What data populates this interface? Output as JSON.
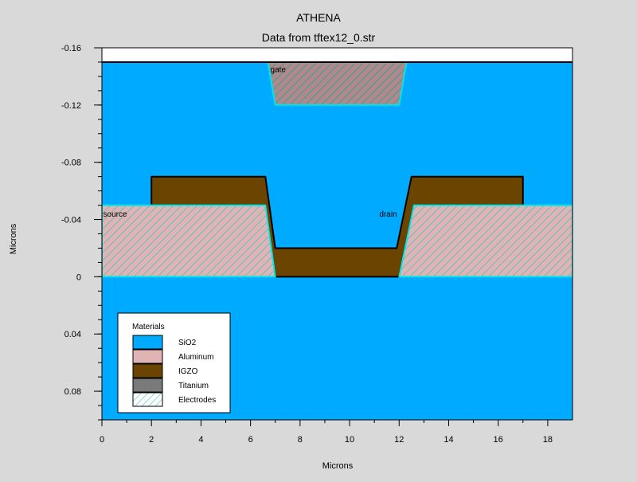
{
  "app_title": "ATHENA",
  "subtitle": "Data from tftex12_0.str",
  "chart_data": {
    "type": "structure-cross-section",
    "title": "ATHENA",
    "subtitle": "Data from tftex12_0.str",
    "xlabel": "Microns",
    "ylabel": "Microns",
    "xlim": [
      0,
      19
    ],
    "ylim": [
      -0.16,
      0.1
    ],
    "y_inverted": true,
    "x_ticks": [
      "0",
      "2",
      "4",
      "6",
      "8",
      "10",
      "12",
      "14",
      "16",
      "18"
    ],
    "x_tick_values": [
      0,
      2,
      4,
      6,
      8,
      10,
      12,
      14,
      16,
      18
    ],
    "y_ticks": [
      "-0.16",
      "-0.12",
      "-0.08",
      "-0.04",
      "0",
      "0.04",
      "0.08"
    ],
    "y_tick_values": [
      -0.16,
      -0.12,
      -0.08,
      -0.04,
      0,
      0.04,
      0.08
    ],
    "regions": [
      {
        "material": "SiO2",
        "role": "oxide-upper",
        "points": [
          [
            0,
            -0.15
          ],
          [
            19,
            -0.15
          ],
          [
            19,
            0
          ],
          [
            0,
            0
          ]
        ]
      },
      {
        "material": "SiO2",
        "role": "oxide-lower",
        "points": [
          [
            0,
            0
          ],
          [
            19,
            0
          ],
          [
            19,
            0.1
          ],
          [
            0,
            0.1
          ]
        ]
      },
      {
        "material": "IGZO",
        "role": "channel",
        "points": [
          [
            2,
            -0.07
          ],
          [
            6.6,
            -0.07
          ],
          [
            7.0,
            -0.02
          ],
          [
            11.9,
            -0.02
          ],
          [
            12.5,
            -0.07
          ],
          [
            17,
            -0.07
          ],
          [
            17,
            -0.05
          ],
          [
            12.6,
            -0.05
          ],
          [
            12.0,
            0
          ],
          [
            7.0,
            0
          ],
          [
            6.6,
            -0.05
          ],
          [
            2,
            -0.05
          ]
        ]
      },
      {
        "material": "Electrodes",
        "role": "source",
        "points": [
          [
            0,
            -0.05
          ],
          [
            6.6,
            -0.05
          ],
          [
            7.0,
            0
          ],
          [
            0,
            0
          ]
        ]
      },
      {
        "material": "Electrodes",
        "role": "drain",
        "points": [
          [
            12.6,
            -0.05
          ],
          [
            19,
            -0.05
          ],
          [
            19,
            0
          ],
          [
            12.0,
            0
          ]
        ]
      },
      {
        "material": "Electrodes",
        "role": "gate",
        "points": [
          [
            6.7,
            -0.15
          ],
          [
            12.3,
            -0.15
          ],
          [
            12.0,
            -0.12
          ],
          [
            7.0,
            -0.12
          ]
        ]
      }
    ],
    "electrode_labels": [
      {
        "text": "gate",
        "x": 6.8,
        "y": -0.143
      },
      {
        "text": "source",
        "x": 0.05,
        "y": -0.042
      },
      {
        "text": "drain",
        "x": 11.2,
        "y": -0.042
      }
    ],
    "legend": {
      "title": "Materials",
      "placement": "bottom-left",
      "items": [
        {
          "label": "SiO2",
          "fill": "#00aaff",
          "hatch": false
        },
        {
          "label": "Aluminum",
          "fill": "#e0b4b4",
          "hatch": false
        },
        {
          "label": "IGZO",
          "fill": "#6b4500",
          "hatch": false
        },
        {
          "label": "Titanium",
          "fill": "#7a7a7a",
          "hatch": false
        },
        {
          "label": "Electrodes",
          "fill": "#ffffff",
          "hatch": true
        }
      ]
    }
  },
  "colors": {
    "background": "#d9d9d9",
    "sio2": "#00aaff",
    "aluminum": "#e0b4b4",
    "igzo": "#6b4500",
    "titanium": "#7a7a7a",
    "electrode_outline": "#00e5e5",
    "electrode_hatch": "#4dbfbf"
  }
}
